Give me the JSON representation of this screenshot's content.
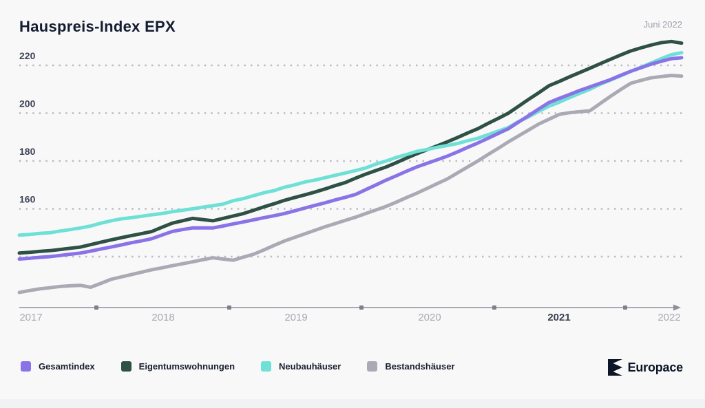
{
  "header": {
    "title": "Hauspreis-Index EPX",
    "date_label": "Juni 2022"
  },
  "branding": {
    "logo_text": "Europace"
  },
  "chart_data": {
    "type": "line",
    "title": "Hauspreis-Index EPX",
    "subtitle": "Juni 2022",
    "x_unit": "month",
    "x_range": [
      "2017-01",
      "2022-06"
    ],
    "x_tick_labels": [
      "2017",
      "2018",
      "2019",
      "2020",
      "2021",
      "2022"
    ],
    "highlighted_x_tick": "2021",
    "y_gridlines": [
      140,
      160,
      180,
      200,
      220
    ],
    "y_axis_labels": [
      160,
      180,
      200,
      220
    ],
    "ylim": [
      118,
      236
    ],
    "grid": "dotted-horizontal",
    "legend_position": "bottom-left",
    "series": [
      {
        "name": "Gesamtindex",
        "color": "#8973e6",
        "values": [
          139,
          139.3,
          139.7,
          140,
          140.5,
          141,
          141.5,
          142.3,
          143.2,
          144,
          144.9,
          145.8,
          146.6,
          147.5,
          149,
          150.5,
          151.3,
          152,
          152,
          152,
          152.8,
          153.7,
          154.5,
          155.4,
          156.3,
          157.1,
          158,
          159.1,
          160.3,
          161.4,
          162.5,
          163.7,
          164.8,
          166,
          168,
          170,
          172,
          173.8,
          175.7,
          177.5,
          179,
          180.5,
          182,
          183.8,
          185.7,
          187.5,
          189.5,
          191.5,
          193.5,
          196.3,
          199,
          201.8,
          204.5,
          206.2,
          207.8,
          209.5,
          211,
          212.5,
          214,
          215.8,
          217.5,
          219,
          220.5,
          221.7,
          222.8,
          223.2
        ]
      },
      {
        "name": "Eigentumswohnungen",
        "color": "#2e5045",
        "values": [
          141.5,
          141.8,
          142.2,
          142.5,
          143,
          143.5,
          144,
          145,
          146,
          147,
          147.9,
          148.8,
          149.6,
          150.5,
          152.3,
          154,
          155,
          156,
          155.5,
          155,
          156,
          157,
          158,
          159.4,
          160.8,
          162.1,
          163.5,
          164.7,
          165.8,
          167,
          168.3,
          169.7,
          171,
          172.8,
          174.5,
          176,
          177.5,
          179.3,
          181.2,
          183,
          184.7,
          186.3,
          188,
          189.8,
          191.7,
          193.5,
          195.7,
          197.8,
          200,
          202.9,
          205.8,
          208.6,
          211.5,
          213.3,
          215.2,
          217,
          218.8,
          220.7,
          222.5,
          224.3,
          226,
          227.3,
          228.5,
          229.5,
          230,
          229.3
        ]
      },
      {
        "name": "Neubauhäuser",
        "color": "#6fe0d6",
        "values": [
          149,
          149.3,
          149.7,
          150,
          150.7,
          151.3,
          152,
          152.8,
          154,
          155,
          155.8,
          156.3,
          156.9,
          157.5,
          158,
          158.8,
          159.4,
          160,
          160.7,
          161.3,
          162,
          163.4,
          164.3,
          165.5,
          166.7,
          167.6,
          169,
          170,
          171.2,
          172,
          173,
          174,
          175,
          176,
          177.1,
          178.7,
          180,
          181.5,
          182.7,
          184,
          184.8,
          185.7,
          186.5,
          187.3,
          188.5,
          189.5,
          191,
          192.5,
          194,
          196.5,
          198.5,
          200.8,
          203,
          204.6,
          206.5,
          208.3,
          210,
          212.1,
          213.8,
          215.6,
          217.5,
          219.2,
          221,
          222.8,
          224.5,
          225.3
        ]
      },
      {
        "name": "Bestandshäuser",
        "color": "#a9aab4",
        "values": [
          125,
          125.8,
          126.5,
          127,
          127.5,
          127.8,
          128,
          127.2,
          128.8,
          130.5,
          131.5,
          132.5,
          133.5,
          134.5,
          135.3,
          136.2,
          137,
          137.8,
          138.7,
          139.5,
          139,
          138.5,
          139.8,
          141,
          142.8,
          144.7,
          146.5,
          148,
          149.5,
          151,
          152.5,
          153.8,
          155.2,
          156.5,
          158,
          159.5,
          161,
          162.8,
          164.7,
          166.5,
          168.5,
          170.5,
          172.5,
          175,
          177.5,
          180,
          182.7,
          185.3,
          188,
          190.5,
          193,
          195.5,
          197.5,
          199.5,
          200.2,
          200.6,
          201,
          204,
          207,
          209.8,
          212.5,
          213.7,
          214.8,
          215.3,
          215.8,
          215.5
        ]
      }
    ]
  },
  "colors": {
    "background": "#f8f8f9",
    "footer_strip": "#f1f2f4",
    "grid_dots": "#b8bac3",
    "axis": "#8e9099",
    "axis_marker": "#7f818a",
    "title_text": "#131c30",
    "logo": "#0c1626"
  }
}
